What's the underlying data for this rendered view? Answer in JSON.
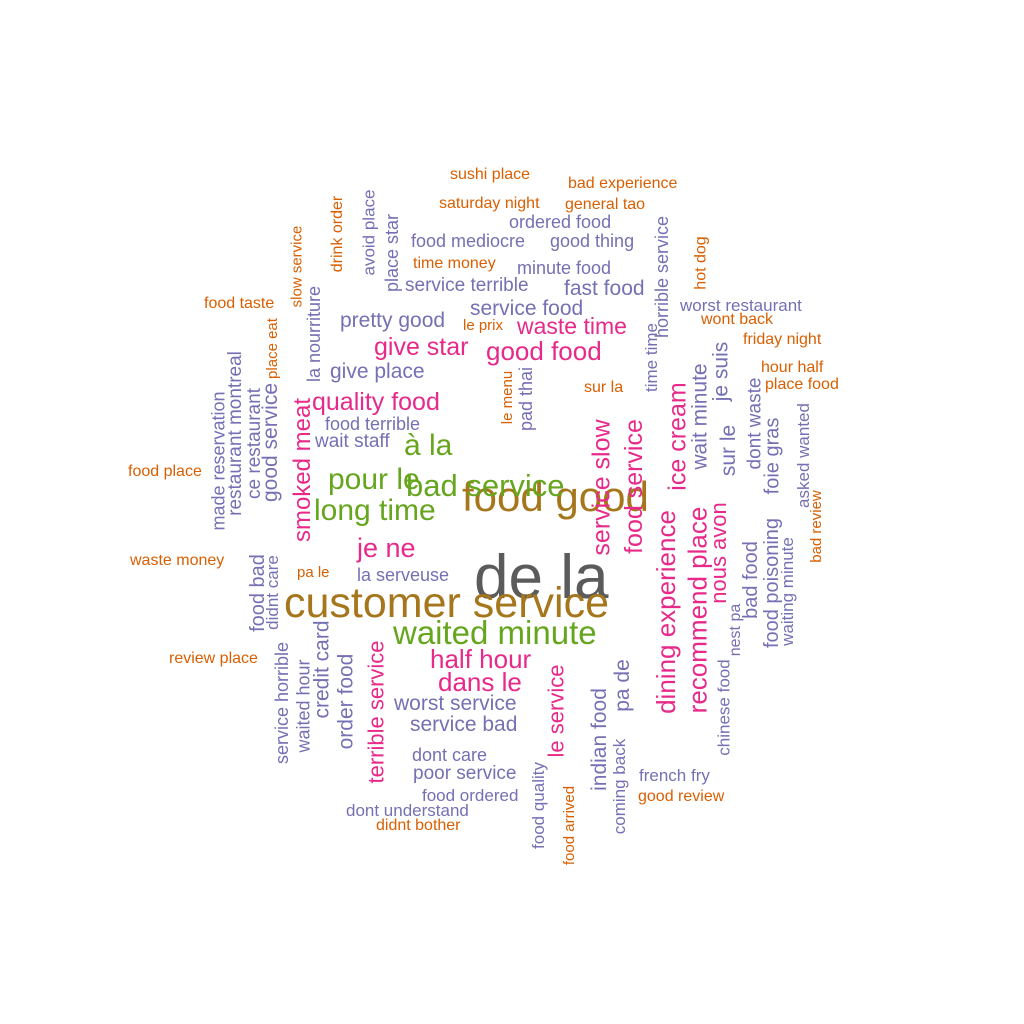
{
  "palette": {
    "gray": "#5b5b5b",
    "gold": "#a6761d",
    "green": "#66a61e",
    "pink": "#e7298a",
    "purple": "#7570b3",
    "orange": "#d95f02"
  },
  "words": [
    {
      "text": "de la",
      "color": "gray",
      "vertical": true
    },
    {
      "text": "customer service",
      "color": "gold",
      "vertical": false
    },
    {
      "text": "food good",
      "color": "gold",
      "vertical": true
    },
    {
      "text": "waited minute",
      "color": "green",
      "vertical": false
    },
    {
      "text": "bad service",
      "color": "green",
      "vertical": true
    },
    {
      "text": "long time",
      "color": "green",
      "vertical": false
    },
    {
      "text": "pour le",
      "color": "green",
      "vertical": false
    },
    {
      "text": "à la",
      "color": "green",
      "vertical": false
    },
    {
      "text": "good food",
      "color": "pink",
      "vertical": false
    },
    {
      "text": "give star",
      "color": "pink",
      "vertical": false
    },
    {
      "text": "quality food",
      "color": "pink",
      "vertical": false
    },
    {
      "text": "waste time",
      "color": "pink",
      "vertical": false
    },
    {
      "text": "je ne",
      "color": "pink",
      "vertical": false
    },
    {
      "text": "half hour",
      "color": "pink",
      "vertical": false
    },
    {
      "text": "dans le",
      "color": "pink",
      "vertical": false
    },
    {
      "text": "smoked meat",
      "color": "pink",
      "vertical": true
    },
    {
      "text": "service slow",
      "color": "pink",
      "vertical": true
    },
    {
      "text": "food service",
      "color": "pink",
      "vertical": true
    },
    {
      "text": "ice cream",
      "color": "pink",
      "vertical": true
    },
    {
      "text": "dining experience",
      "color": "pink",
      "vertical": true
    },
    {
      "text": "recommend place",
      "color": "pink",
      "vertical": true
    },
    {
      "text": "terrible service",
      "color": "pink",
      "vertical": true
    },
    {
      "text": "le service",
      "color": "pink",
      "vertical": true
    },
    {
      "text": "nous avon",
      "color": "pink",
      "vertical": true
    },
    {
      "text": "service food",
      "color": "purple",
      "vertical": false
    },
    {
      "text": "pretty good",
      "color": "purple",
      "vertical": false
    },
    {
      "text": "give place",
      "color": "purple",
      "vertical": false
    },
    {
      "text": "fast food",
      "color": "purple",
      "vertical": false
    },
    {
      "text": "service terrible",
      "color": "purple",
      "vertical": false
    },
    {
      "text": "food mediocre",
      "color": "purple",
      "vertical": false
    },
    {
      "text": "good thing",
      "color": "purple",
      "vertical": false
    },
    {
      "text": "minute food",
      "color": "purple",
      "vertical": false
    },
    {
      "text": "ordered food",
      "color": "purple",
      "vertical": false
    },
    {
      "text": "worst restaurant",
      "color": "purple",
      "vertical": false
    },
    {
      "text": "food terrible",
      "color": "purple",
      "vertical": false
    },
    {
      "text": "wait staff",
      "color": "purple",
      "vertical": false
    },
    {
      "text": "la serveuse",
      "color": "purple",
      "vertical": false
    },
    {
      "text": "worst service",
      "color": "purple",
      "vertical": false
    },
    {
      "text": "service bad",
      "color": "purple",
      "vertical": false
    },
    {
      "text": "dont care",
      "color": "purple",
      "vertical": false
    },
    {
      "text": "poor service",
      "color": "purple",
      "vertical": false
    },
    {
      "text": "food ordered",
      "color": "purple",
      "vertical": false
    },
    {
      "text": "dont understand",
      "color": "purple",
      "vertical": false
    },
    {
      "text": "french fry",
      "color": "purple",
      "vertical": false
    },
    {
      "text": "good service",
      "color": "purple",
      "vertical": true
    },
    {
      "text": "ce restaurant",
      "color": "purple",
      "vertical": true
    },
    {
      "text": "restaurant montreal",
      "color": "purple",
      "vertical": true
    },
    {
      "text": "made reservation",
      "color": "purple",
      "vertical": true
    },
    {
      "text": "food bad",
      "color": "purple",
      "vertical": true
    },
    {
      "text": "didnt care",
      "color": "purple",
      "vertical": true
    },
    {
      "text": "service horrible",
      "color": "purple",
      "vertical": true
    },
    {
      "text": "waited hour",
      "color": "purple",
      "vertical": true
    },
    {
      "text": "credit card",
      "color": "purple",
      "vertical": true
    },
    {
      "text": "order food",
      "color": "purple",
      "vertical": true
    },
    {
      "text": "la nourriture",
      "color": "purple",
      "vertical": true
    },
    {
      "text": "place star",
      "color": "purple",
      "vertical": true
    },
    {
      "text": "avoid place",
      "color": "purple",
      "vertical": true
    },
    {
      "text": "pad thai",
      "color": "purple",
      "vertical": true
    },
    {
      "text": "time time",
      "color": "purple",
      "vertical": true
    },
    {
      "text": "horrible service",
      "color": "purple",
      "vertical": true
    },
    {
      "text": "wait minute",
      "color": "purple",
      "vertical": true
    },
    {
      "text": "je suis",
      "color": "purple",
      "vertical": true
    },
    {
      "text": "sur le",
      "color": "purple",
      "vertical": true
    },
    {
      "text": "dont waste",
      "color": "purple",
      "vertical": true
    },
    {
      "text": "food poisoning",
      "color": "purple",
      "vertical": true
    },
    {
      "text": "foie gras",
      "color": "purple",
      "vertical": true
    },
    {
      "text": "asked wanted",
      "color": "purple",
      "vertical": true
    },
    {
      "text": "waiting minute",
      "color": "purple",
      "vertical": true
    },
    {
      "text": "bad food",
      "color": "purple",
      "vertical": true
    },
    {
      "text": "nest pa",
      "color": "purple",
      "vertical": true
    },
    {
      "text": "chinese food",
      "color": "purple",
      "vertical": true
    },
    {
      "text": "pa de",
      "color": "purple",
      "vertical": true
    },
    {
      "text": "indian food",
      "color": "purple",
      "vertical": true
    },
    {
      "text": "coming back",
      "color": "purple",
      "vertical": true
    },
    {
      "text": "food quality",
      "color": "purple",
      "vertical": true
    },
    {
      "text": "sushi place",
      "color": "orange",
      "vertical": false
    },
    {
      "text": "bad experience",
      "color": "orange",
      "vertical": false
    },
    {
      "text": "saturday night",
      "color": "orange",
      "vertical": false
    },
    {
      "text": "general tao",
      "color": "orange",
      "vertical": false
    },
    {
      "text": "time money",
      "color": "orange",
      "vertical": false
    },
    {
      "text": "food taste",
      "color": "orange",
      "vertical": false
    },
    {
      "text": "le prix",
      "color": "orange",
      "vertical": false
    },
    {
      "text": "wont back",
      "color": "orange",
      "vertical": false
    },
    {
      "text": "friday night",
      "color": "orange",
      "vertical": false
    },
    {
      "text": "hour half",
      "color": "orange",
      "vertical": false
    },
    {
      "text": "place food",
      "color": "orange",
      "vertical": false
    },
    {
      "text": "sur la",
      "color": "orange",
      "vertical": false
    },
    {
      "text": "food place",
      "color": "orange",
      "vertical": false
    },
    {
      "text": "waste money",
      "color": "orange",
      "vertical": false
    },
    {
      "text": "pa le",
      "color": "orange",
      "vertical": false
    },
    {
      "text": "review place",
      "color": "orange",
      "vertical": false
    },
    {
      "text": "didnt bother",
      "color": "orange",
      "vertical": false
    },
    {
      "text": "good review",
      "color": "orange",
      "vertical": false
    },
    {
      "text": "slow service",
      "color": "orange",
      "vertical": true
    },
    {
      "text": "drink order",
      "color": "orange",
      "vertical": true
    },
    {
      "text": "place eat",
      "color": "orange",
      "vertical": true
    },
    {
      "text": "hot dog",
      "color": "orange",
      "vertical": true
    },
    {
      "text": "le menu",
      "color": "orange",
      "vertical": true
    },
    {
      "text": "bad review",
      "color": "orange",
      "vertical": true
    },
    {
      "text": "food arrived",
      "color": "orange",
      "vertical": true
    }
  ]
}
